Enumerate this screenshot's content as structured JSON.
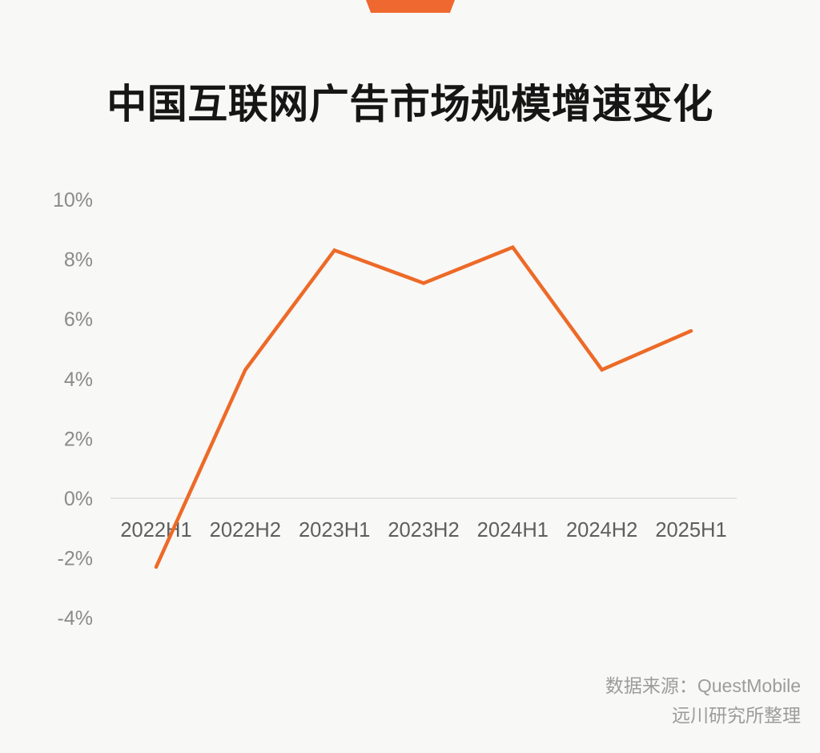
{
  "page": {
    "background_color": "#f8f8f6",
    "accent_color": "#ed6a28"
  },
  "header": {
    "tab_color": "#ef682f"
  },
  "chart_data": {
    "type": "line",
    "title": "中国互联网广告市场规模增速变化",
    "categories": [
      "2022H1",
      "2022H2",
      "2023H1",
      "2023H2",
      "2024H1",
      "2024H2",
      "2025H1"
    ],
    "values": [
      -2.3,
      4.3,
      8.3,
      7.2,
      8.4,
      4.3,
      5.6
    ],
    "unit": "%",
    "yticks": [
      10,
      8,
      6,
      4,
      2,
      0,
      -2,
      -4
    ],
    "ylim": [
      -4,
      10
    ],
    "xlabel": "",
    "ylabel": "",
    "grid": false,
    "legend_position": "none",
    "line_color": "#ed6a28"
  },
  "source": {
    "line1": "数据来源：QuestMobile",
    "line2": "远川研究所整理"
  }
}
